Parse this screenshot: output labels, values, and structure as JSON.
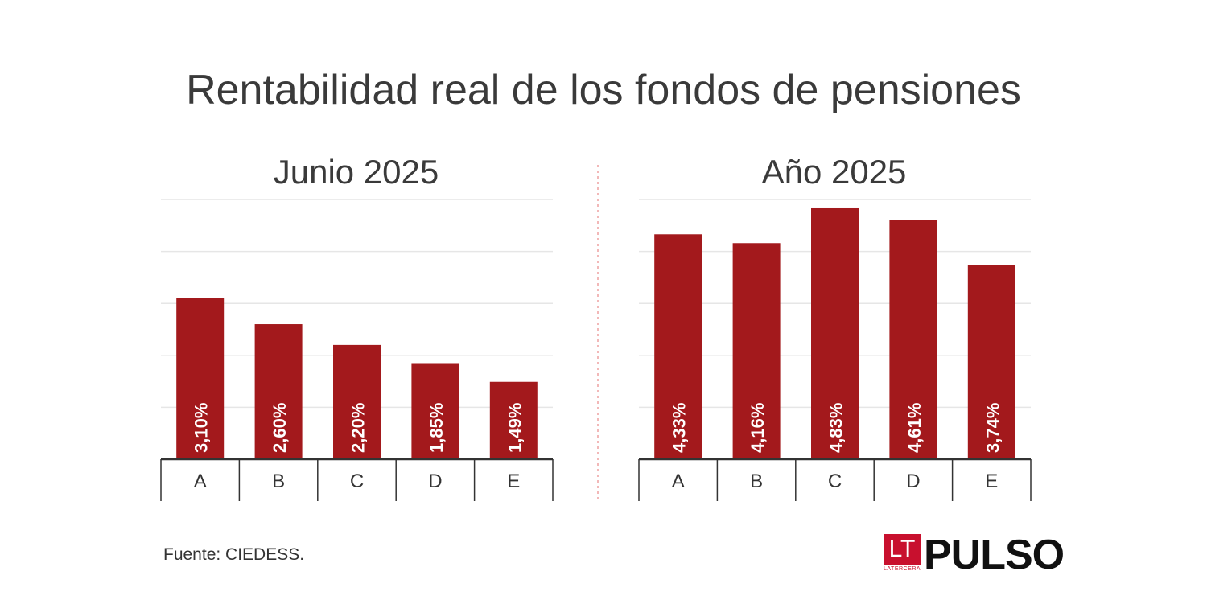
{
  "title": "Rentabilidad real de los fondos de pensiones",
  "source": "Fuente: CIEDESS.",
  "logo": {
    "lt": "LT",
    "lt_sub": "LATERCERA",
    "brand": "PULSO"
  },
  "colors": {
    "bar": "#a3191c",
    "grid": "#e6e6e6",
    "axis": "#333333",
    "divider": "#f2b8b8",
    "text": "#3a3a3a"
  },
  "chart_data": [
    {
      "type": "bar",
      "title": "Junio 2025",
      "categories": [
        "A",
        "B",
        "C",
        "D",
        "E"
      ],
      "values": [
        3.1,
        2.6,
        2.2,
        1.85,
        1.49
      ],
      "labels": [
        "3,10%",
        "2,60%",
        "2,20%",
        "1,85%",
        "1,49%"
      ],
      "ylim": [
        0,
        5
      ],
      "grid": true
    },
    {
      "type": "bar",
      "title": "Año 2025",
      "categories": [
        "A",
        "B",
        "C",
        "D",
        "E"
      ],
      "values": [
        4.33,
        4.16,
        4.83,
        4.61,
        3.74
      ],
      "labels": [
        "4,33%",
        "4,16%",
        "4,83%",
        "4,61%",
        "3,74%"
      ],
      "ylim": [
        0,
        5
      ],
      "grid": true
    }
  ]
}
